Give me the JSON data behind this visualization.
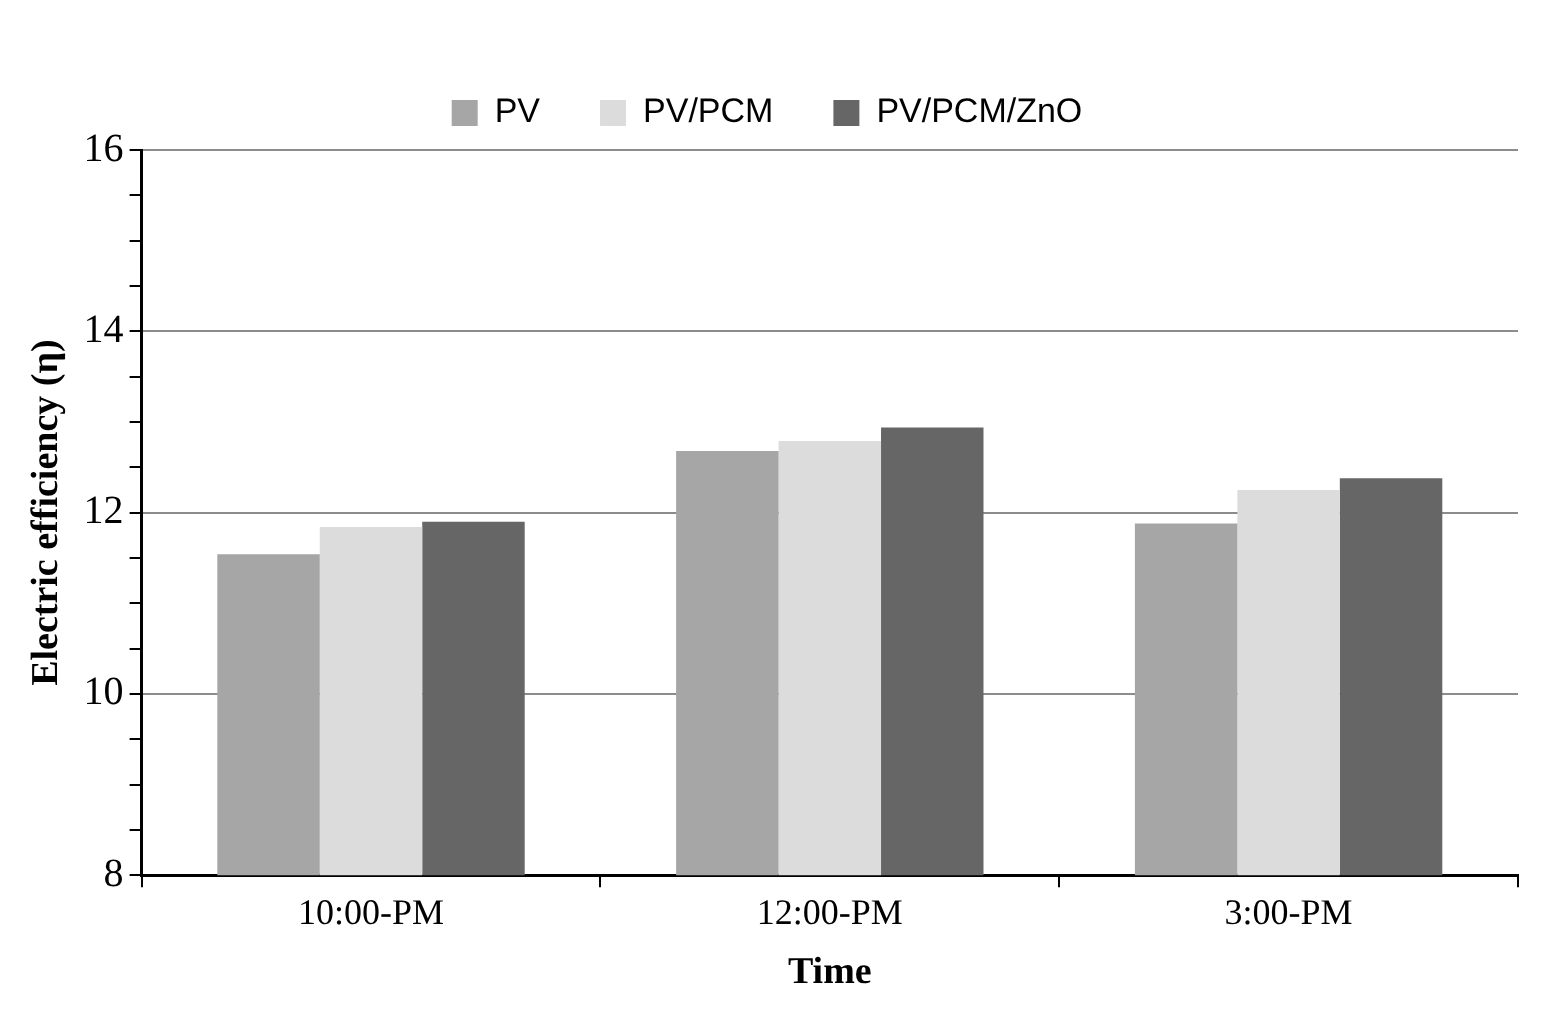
{
  "chart_data": {
    "type": "bar",
    "xlabel": "Time",
    "ylabel": "Electric efficiency (η)",
    "categories": [
      "10:00-PM",
      "12:00-PM",
      "3:00-PM"
    ],
    "series": [
      {
        "name": "PV",
        "color": "#a6a6a6",
        "values": [
          11.54,
          12.68,
          11.88
        ]
      },
      {
        "name": "PV/PCM",
        "color": "#dcdcdc",
        "values": [
          11.84,
          12.79,
          12.25
        ]
      },
      {
        "name": "PV/PCM/ZnO",
        "color": "#666666",
        "values": [
          11.9,
          12.94,
          12.38
        ]
      }
    ],
    "ylim": [
      8,
      16
    ],
    "yticks": [
      8,
      {
        "value": 8.5,
        "label": null
      },
      {
        "value": 9,
        "label": null
      },
      {
        "value": 9.5,
        "label": null
      },
      10,
      {
        "value": 10.5,
        "label": null
      },
      {
        "value": 11,
        "label": null
      },
      {
        "value": 11.5,
        "label": null
      },
      12,
      {
        "value": 12.5,
        "label": null
      },
      {
        "value": 13,
        "label": null
      },
      {
        "value": 13.5,
        "label": null
      },
      14,
      {
        "value": 14.5,
        "label": null
      },
      {
        "value": 15,
        "label": null
      },
      {
        "value": 15.5,
        "label": null
      },
      16
    ],
    "grid": "y",
    "legend": "top"
  }
}
